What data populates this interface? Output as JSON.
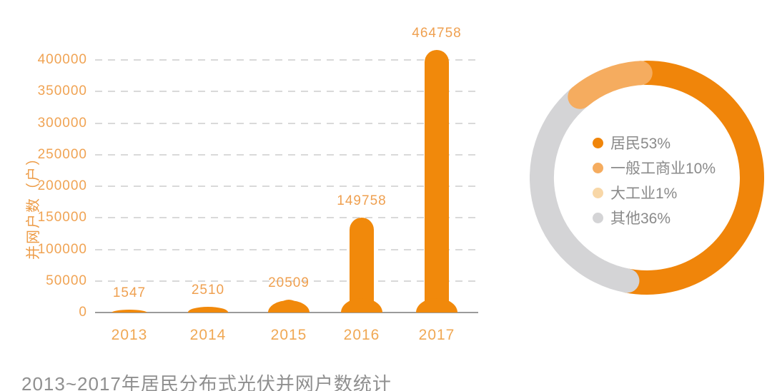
{
  "footer": {
    "title": "2013~2017年居民分布式光伏并网户数统计"
  },
  "colors": {
    "bar": "#F1890B",
    "tick_text": "#F0A353",
    "value_text": "#EFA050",
    "axis_line": "#9b9b9b",
    "grid_line": "#d9d9d9",
    "title_text": "#8F8F8F"
  },
  "chart_data": [
    {
      "type": "bar",
      "title": "",
      "xlabel": "",
      "ylabel": "并网户数（户）",
      "categories": [
        "2013",
        "2014",
        "2015",
        "2016",
        "2017"
      ],
      "values": [
        1547,
        2510,
        20509,
        149758,
        464758
      ],
      "value_labels": [
        "1547",
        "2510",
        "20509",
        "149758",
        "464758"
      ],
      "ylim": [
        0,
        400000
      ],
      "ytick_step": 50000,
      "yticks": [
        "400000",
        "350000",
        "300000",
        "250000",
        "200000",
        "150000",
        "100000",
        "50000",
        "0"
      ],
      "grid": "horizontal-dashed",
      "bar_color": "#F1890B",
      "note": "2017 bar is visually clipped just above the 400000 gridline"
    },
    {
      "type": "pie",
      "subtype": "donut",
      "start": "top",
      "direction": "clockwise",
      "legend_position": "center-inside",
      "segments": [
        {
          "label": "居民",
          "pct": 53,
          "display": "居民53%",
          "color": "#F0850A"
        },
        {
          "label": "一般工商业",
          "pct": 10,
          "display": "一般工商业10%",
          "color": "#F5AC5F"
        },
        {
          "label": "大工业",
          "pct": 1,
          "display": "大工业1%",
          "color": "#F8D7A7"
        },
        {
          "label": "其他",
          "pct": 36,
          "display": "其他36%",
          "color": "#D4D4D6"
        }
      ]
    }
  ]
}
